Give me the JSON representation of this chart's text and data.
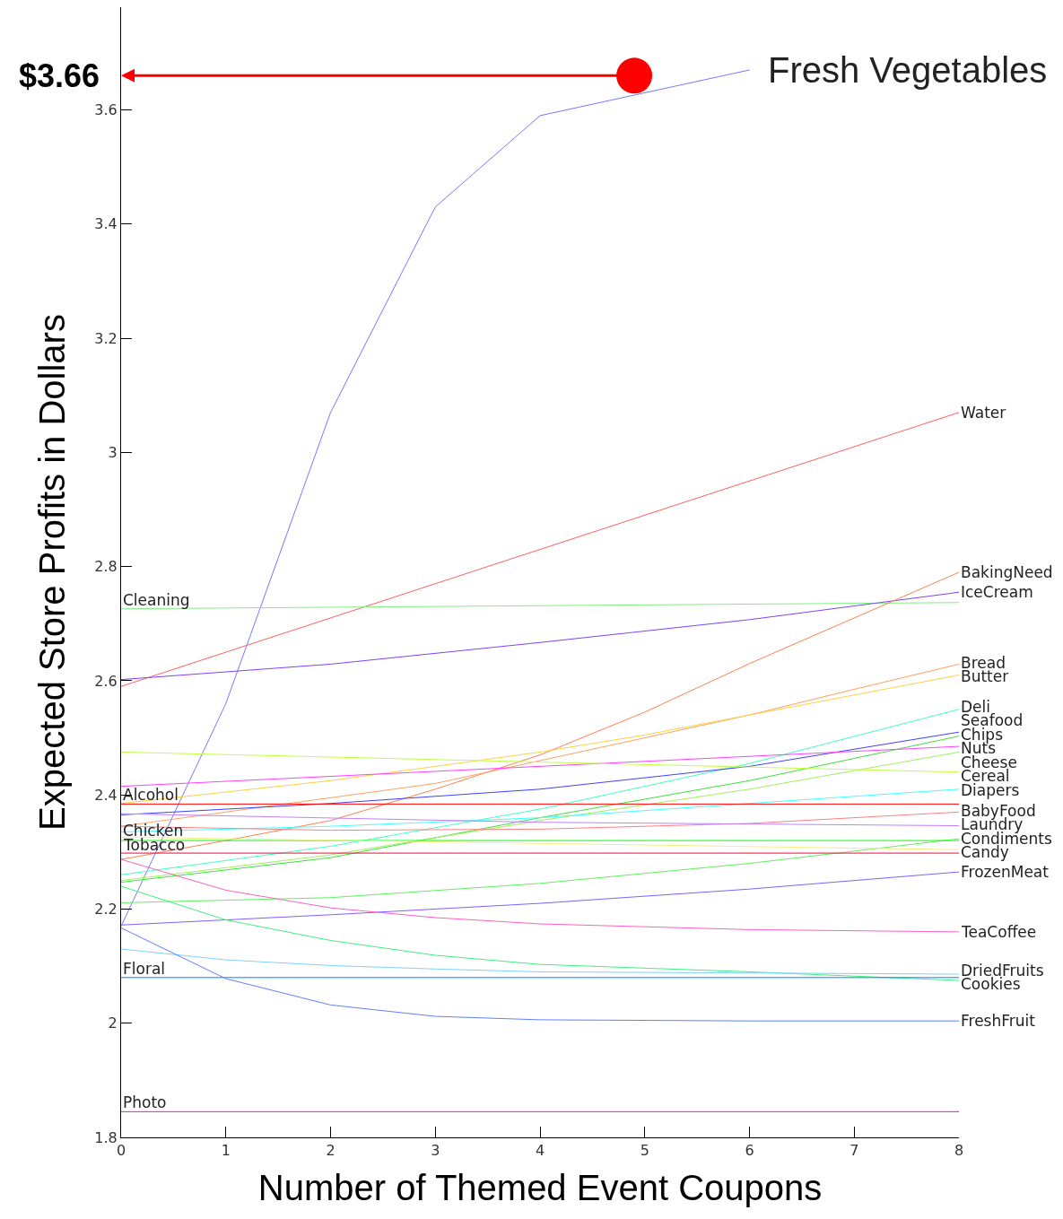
{
  "chart_data": {
    "type": "line",
    "xlabel": "Number of Themed Event Coupons",
    "ylabel": "Expected Store Profits in Dollars",
    "xlim": [
      0,
      8
    ],
    "xticks": [
      0,
      1,
      2,
      3,
      4,
      5,
      6,
      7,
      8
    ],
    "ylim": [
      1.8,
      3.78
    ],
    "yticks": [
      1.8,
      2,
      2.2,
      2.4,
      2.6,
      2.8,
      3,
      3.2,
      3.4,
      3.6
    ],
    "grid": false,
    "legend": false,
    "annotations": [
      {
        "text": "$3.66",
        "x": 4.9,
        "y": 3.66
      }
    ],
    "series": [
      {
        "name": "Fresh Vegetables",
        "color": "#7878ff",
        "x": [
          0,
          1,
          2,
          3,
          4,
          6
        ],
        "values": [
          2.17,
          2.56,
          3.07,
          3.43,
          3.59,
          3.67
        ]
      },
      {
        "name": "Water",
        "color": "#ff6060",
        "x": [
          0,
          8
        ],
        "values": [
          2.59,
          3.07
        ]
      },
      {
        "name": "Cleaning",
        "color": "#80f080",
        "x": [
          0,
          8
        ],
        "values": [
          2.726,
          2.737
        ]
      },
      {
        "name": "IceCream",
        "color": "#8040ff",
        "x": [
          0,
          2,
          4,
          6,
          8
        ],
        "values": [
          2.602,
          2.629,
          2.667,
          2.707,
          2.755
        ]
      },
      {
        "name": "BakingNeed",
        "color": "#ff8050",
        "x": [
          0,
          1,
          2,
          3,
          4,
          5,
          6,
          7,
          8
        ],
        "values": [
          2.287,
          2.32,
          2.355,
          2.41,
          2.47,
          2.545,
          2.63,
          2.71,
          2.79
        ]
      },
      {
        "name": "Bread",
        "color": "#ffa060",
        "x": [
          0,
          1,
          2,
          3,
          4,
          5,
          6,
          7,
          8
        ],
        "values": [
          2.345,
          2.37,
          2.395,
          2.42,
          2.46,
          2.5,
          2.54,
          2.585,
          2.629
        ]
      },
      {
        "name": "Butter",
        "color": "#ffd040",
        "x": [
          0,
          1,
          2,
          3,
          4,
          5,
          6,
          7,
          8
        ],
        "values": [
          2.385,
          2.405,
          2.425,
          2.45,
          2.475,
          2.505,
          2.54,
          2.575,
          2.61
        ]
      },
      {
        "name": "Deli",
        "color": "#40ffc0",
        "x": [
          0,
          2,
          4,
          6,
          8
        ],
        "values": [
          2.26,
          2.31,
          2.375,
          2.455,
          2.55
        ]
      },
      {
        "name": "Seafood",
        "color": "#4040ff",
        "x": [
          0,
          2,
          4,
          6,
          8
        ],
        "values": [
          2.365,
          2.385,
          2.41,
          2.45,
          2.51
        ]
      },
      {
        "name": "Chips",
        "color": "#40e040",
        "x": [
          0,
          2,
          4,
          6,
          8
        ],
        "values": [
          2.247,
          2.29,
          2.36,
          2.425,
          2.503
        ]
      },
      {
        "name": "Nuts",
        "color": "#ff40ff",
        "x": [
          0,
          4,
          8
        ],
        "values": [
          2.415,
          2.45,
          2.485
        ]
      },
      {
        "name": "Cheese",
        "color": "#a0f060",
        "x": [
          0,
          2,
          4,
          6,
          8
        ],
        "values": [
          2.25,
          2.295,
          2.355,
          2.41,
          2.475
        ]
      },
      {
        "name": "Cereal",
        "color": "#c0ff40",
        "x": [
          0,
          8
        ],
        "values": [
          2.475,
          2.44
        ]
      },
      {
        "name": "Diapers",
        "color": "#40ffff",
        "x": [
          0,
          2,
          4,
          6,
          8
        ],
        "values": [
          2.335,
          2.345,
          2.36,
          2.385,
          2.41
        ]
      },
      {
        "name": "Alcohol",
        "color": "#ff0000",
        "x": [
          0,
          8
        ],
        "values": [
          2.384,
          2.384
        ]
      },
      {
        "name": "BabyFood",
        "color": "#ff8080",
        "x": [
          0,
          2,
          4,
          6,
          8
        ],
        "values": [
          2.345,
          2.338,
          2.34,
          2.35,
          2.37
        ]
      },
      {
        "name": "Laundry",
        "color": "#c080ff",
        "x": [
          0,
          4,
          8
        ],
        "values": [
          2.367,
          2.352,
          2.346
        ]
      },
      {
        "name": "Condiments",
        "color": "#60f060",
        "x": [
          0,
          2,
          4,
          6,
          8
        ],
        "values": [
          2.211,
          2.22,
          2.245,
          2.28,
          2.323
        ]
      },
      {
        "name": "Chicken",
        "color": "#00ff00",
        "x": [
          0,
          8
        ],
        "values": [
          2.32,
          2.32
        ]
      },
      {
        "name": "Candy",
        "color": "#f0f080",
        "x": [
          0,
          8
        ],
        "values": [
          2.326,
          2.304
        ]
      },
      {
        "name": "Tobacco",
        "color": "#ff0040",
        "x": [
          0,
          8
        ],
        "values": [
          2.298,
          2.298
        ]
      },
      {
        "name": "FrozenMeat",
        "color": "#8060ff",
        "x": [
          0,
          2,
          4,
          6,
          8
        ],
        "values": [
          2.172,
          2.19,
          2.21,
          2.235,
          2.265
        ]
      },
      {
        "name": "TeaCoffee",
        "color": "#ff60c0",
        "x": [
          0,
          1,
          2,
          3,
          4,
          6,
          8
        ],
        "values": [
          2.287,
          2.233,
          2.202,
          2.185,
          2.174,
          2.164,
          2.16
        ]
      },
      {
        "name": "Cookies",
        "color": "#40f080",
        "x": [
          0,
          1,
          2,
          3,
          4,
          6,
          8
        ],
        "values": [
          2.24,
          2.181,
          2.145,
          2.119,
          2.103,
          2.09,
          2.075
        ]
      },
      {
        "name": "DriedFruits",
        "color": "#80d0ff",
        "x": [
          0,
          1,
          2,
          3,
          4,
          8
        ],
        "values": [
          2.13,
          2.111,
          2.101,
          2.095,
          2.09,
          2.086
        ]
      },
      {
        "name": "Floral",
        "color": "#0080ff",
        "x": [
          0,
          8
        ],
        "values": [
          2.08,
          2.08
        ]
      },
      {
        "name": "FreshFruit",
        "color": "#6080ff",
        "x": [
          0,
          1,
          2,
          3,
          4,
          6,
          8
        ],
        "values": [
          2.167,
          2.078,
          2.032,
          2.012,
          2.006,
          2.004,
          2.004
        ]
      },
      {
        "name": "Photo",
        "color": "#ff00ff",
        "x": [
          0,
          8
        ],
        "values": [
          1.845,
          1.845
        ]
      },
      {
        "type": "scatter",
        "color": "#ff0000",
        "x": [
          4.9
        ],
        "values": [
          3.66
        ]
      }
    ]
  }
}
